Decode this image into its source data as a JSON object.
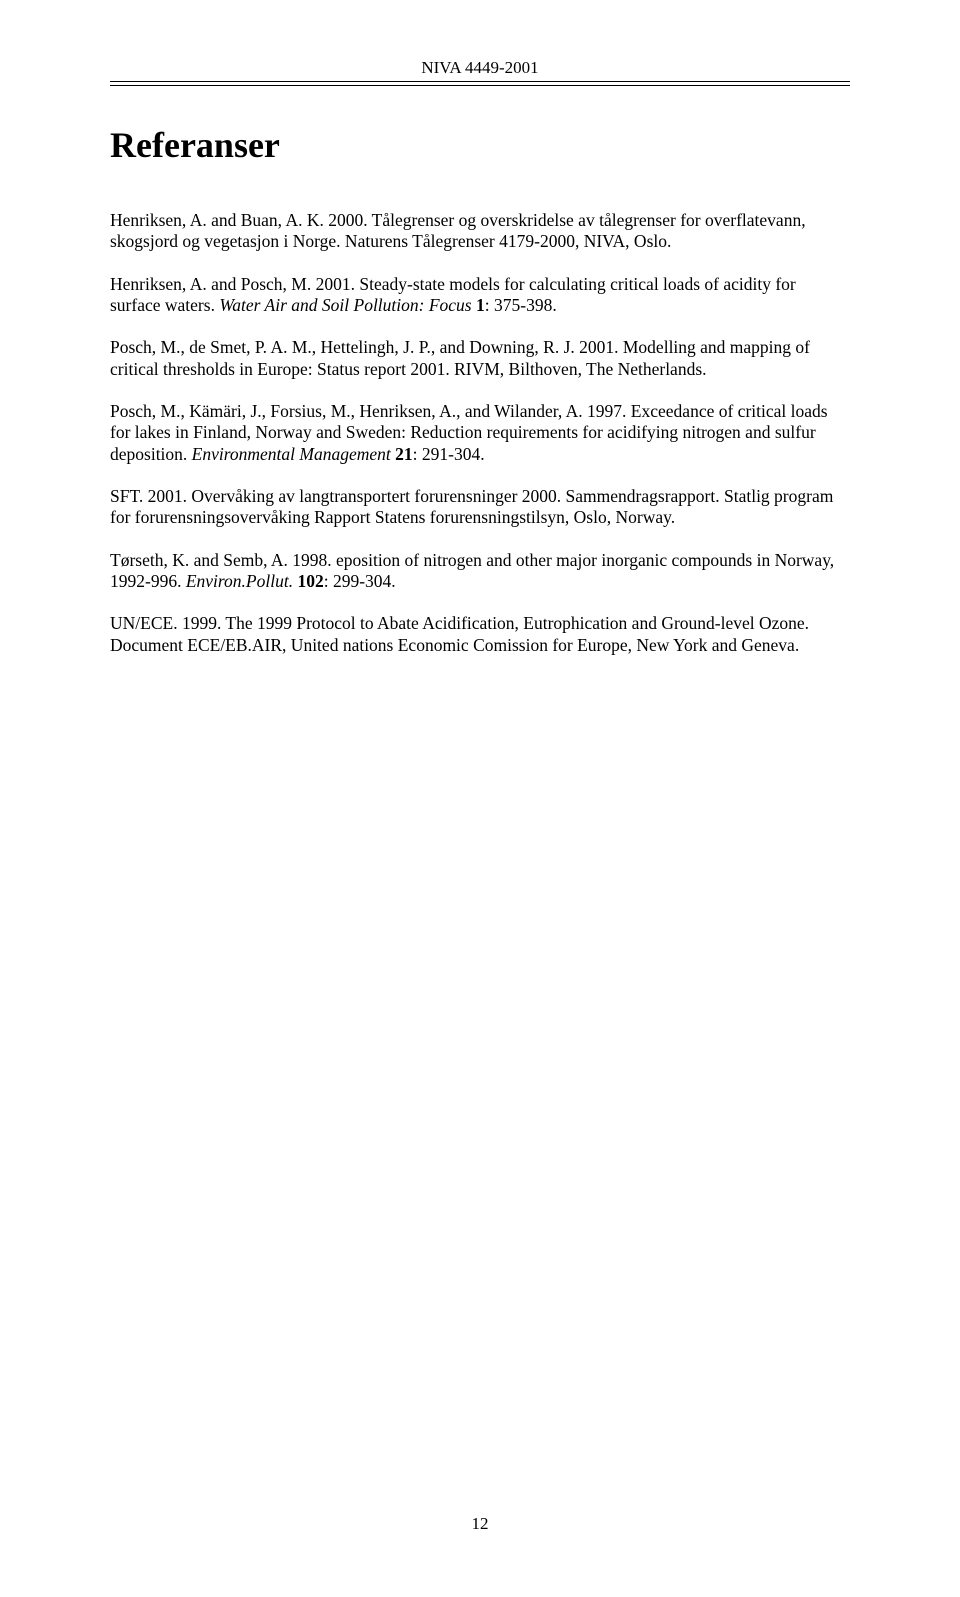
{
  "header": {
    "label": "NIVA  4449-2001"
  },
  "title": "Referanser",
  "references": {
    "r1": {
      "text": "Henriksen, A. and Buan, A. K. 2000. Tålegrenser og overskridelse av tålegrenser for overflatevann, skogsjord og vegetasjon i Norge. Naturens Tålegrenser 4179-2000, NIVA, Oslo."
    },
    "r2": {
      "part1": "Henriksen, A. and Posch, M. 2001. Steady-state models for calculating critical loads of acidity for surface waters. ",
      "italic": "Water Air and Soil Pollution: Focus ",
      "bold": "1",
      "part2": ": 375-398."
    },
    "r3": {
      "text": "Posch, M., de Smet, P. A. M., Hettelingh, J. P., and Downing, R. J. 2001. Modelling and mapping of critical thresholds in Europe: Status report 2001. RIVM, Bilthoven, The Netherlands."
    },
    "r4": {
      "part1": "Posch, M., Kämäri, J., Forsius, M., Henriksen, A., and Wilander, A. 1997. Exceedance of critical loads for lakes in Finland, Norway and Sweden: Reduction requirements for acidifying nitrogen and sulfur deposition. ",
      "italic": "Environmental Management ",
      "bold": "21",
      "part2": ": 291-304."
    },
    "r5": {
      "text": "SFT. 2001. Overvåking av langtransportert forurensninger 2000. Sammendragsrapport. Statlig program for forurensningsovervåking Rapport Statens forurensningstilsyn, Oslo, Norway."
    },
    "r6": {
      "part1": "Tørseth, K. and Semb, A. 1998. eposition of nitrogen and other major inorganic compounds in Norway, 1992-996. ",
      "italic": "Environ.Pollut. ",
      "bold": "102",
      "part2": ": 299-304."
    },
    "r7": {
      "text": "UN/ECE. 1999. The 1999 Protocol to Abate Acidification, Eutrophication and Ground-level Ozone. Document ECE/EB.AIR, United nations Economic Comission for Europe, New York and Geneva."
    }
  },
  "page_number": "12",
  "styles": {
    "background_color": "#ffffff",
    "text_color": "#000000",
    "font_family": "Times New Roman",
    "body_fontsize": 17.5,
    "title_fontsize": 36,
    "header_fontsize": 17
  }
}
